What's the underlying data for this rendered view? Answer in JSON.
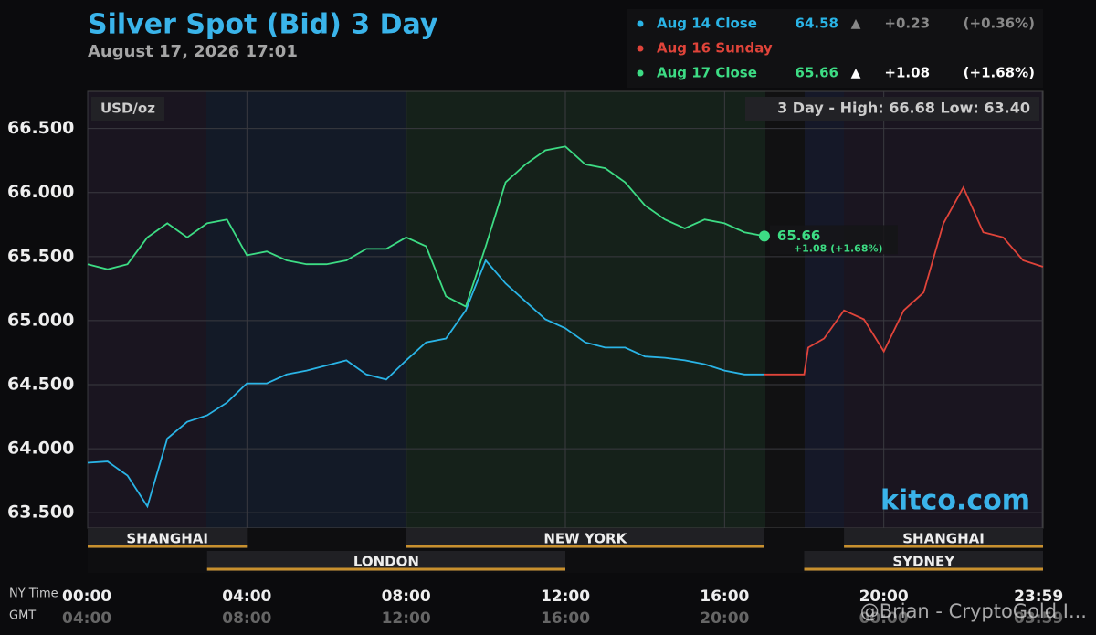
{
  "chart_data": {
    "type": "line",
    "title": "Silver Spot (Bid) 3 Day",
    "subtitle": "August 17, 2026 17:01",
    "unit_label": "USD/oz",
    "range_label": "3 Day - High: 66.68  Low: 63.40",
    "watermark": "kitco.com",
    "credit": "@Brian - CryptoGold I...",
    "ny_time_label": "NY Time",
    "gmt_label": "GMT",
    "xlim": [
      0,
      24
    ],
    "ylim": [
      63.38,
      66.79
    ],
    "yticks": [
      {
        "value": 63.5,
        "label": "63.500"
      },
      {
        "value": 64,
        "label": "64.000"
      },
      {
        "value": 64.5,
        "label": "64.500"
      },
      {
        "value": 65,
        "label": "65.000"
      },
      {
        "value": 65.5,
        "label": "65.500"
      },
      {
        "value": 66,
        "label": "66.000"
      },
      {
        "value": 66.5,
        "label": "66.500"
      }
    ],
    "xticks": [
      {
        "value": 0,
        "label": "00:00"
      },
      {
        "value": 4,
        "label": "04:00"
      },
      {
        "value": 8,
        "label": "08:00"
      },
      {
        "value": 12,
        "label": "12:00"
      },
      {
        "value": 16,
        "label": "16:00"
      },
      {
        "value": 20,
        "label": "20:00"
      },
      {
        "value": 23.98,
        "label": "23:59"
      }
    ],
    "gmt_ticks": [
      "04:00",
      "08:00",
      "12:00",
      "16:00",
      "20:00",
      "00:00",
      "03:59"
    ],
    "grid": true,
    "sessions": [
      {
        "name": "SHANGHAI",
        "start": 0,
        "end": 4,
        "row": 1
      },
      {
        "name": "NEW YORK",
        "start": 8,
        "end": 17,
        "row": 1
      },
      {
        "name": "SHANGHAI",
        "start": 19,
        "end": 24,
        "row": 1
      },
      {
        "name": "LONDON",
        "start": 3,
        "end": 12,
        "row": 2
      },
      {
        "name": "SYDNEY",
        "start": 18,
        "end": 24,
        "row": 2
      }
    ],
    "series": [
      {
        "name": "Aug 14 Close",
        "color": "#2ab4e6",
        "close": 64.58,
        "arrow": "▲",
        "change": "+0.23",
        "change_pct": "(+0.36%)",
        "x": [
          0,
          0.5,
          1,
          1.5,
          2,
          2.5,
          3,
          3.5,
          4,
          4.5,
          5,
          5.5,
          6,
          6.5,
          7,
          7.5,
          8,
          8.5,
          9,
          9.5,
          10,
          10.5,
          11,
          11.5,
          12,
          12.5,
          13,
          13.5,
          14,
          14.5,
          15,
          15.5,
          16,
          16.5,
          17
        ],
        "values": [
          63.89,
          63.9,
          63.79,
          63.55,
          64.08,
          64.21,
          64.26,
          64.36,
          64.51,
          64.51,
          64.58,
          64.61,
          64.65,
          64.69,
          64.58,
          64.54,
          64.69,
          64.83,
          64.86,
          65.08,
          65.47,
          65.29,
          65.15,
          65.01,
          64.94,
          64.83,
          64.79,
          64.79,
          64.72,
          64.71,
          64.69,
          64.66,
          64.61,
          64.58,
          64.58
        ]
      },
      {
        "name": "Aug 16 Sunday",
        "color": "#e0443a",
        "x": [
          17,
          18,
          18.1,
          18.5,
          19,
          19.5,
          20,
          20.5,
          21,
          21.5,
          22,
          22.5,
          23,
          23.5,
          24
        ],
        "values": [
          64.58,
          64.58,
          64.79,
          64.86,
          65.08,
          65.01,
          64.76,
          65.08,
          65.22,
          65.76,
          66.04,
          65.69,
          65.65,
          65.47,
          65.42
        ]
      },
      {
        "name": "Aug 17 Close",
        "color": "#3ddc84",
        "close": 65.66,
        "arrow": "▲",
        "change": "+1.08",
        "change_pct": "(+1.68%)",
        "x": [
          0,
          0.5,
          1,
          1.5,
          2,
          2.5,
          3,
          3.5,
          4,
          4.5,
          5,
          5.5,
          6,
          6.5,
          7,
          7.5,
          8,
          8.5,
          9,
          9.5,
          10,
          10.5,
          11,
          11.5,
          12,
          12.5,
          13,
          13.5,
          14,
          14.5,
          15,
          15.5,
          16,
          16.5,
          17
        ],
        "values": [
          65.44,
          65.4,
          65.44,
          65.65,
          65.76,
          65.65,
          65.76,
          65.79,
          65.51,
          65.54,
          65.47,
          65.44,
          65.44,
          65.47,
          65.56,
          65.56,
          65.65,
          65.58,
          65.19,
          65.11,
          65.58,
          66.08,
          66.22,
          66.33,
          66.36,
          66.22,
          66.19,
          66.08,
          65.9,
          65.79,
          65.72,
          65.79,
          65.76,
          65.69,
          65.66
        ]
      }
    ],
    "end_label": {
      "value": 65.66,
      "change": "+1.08 (+1.68%)"
    }
  }
}
